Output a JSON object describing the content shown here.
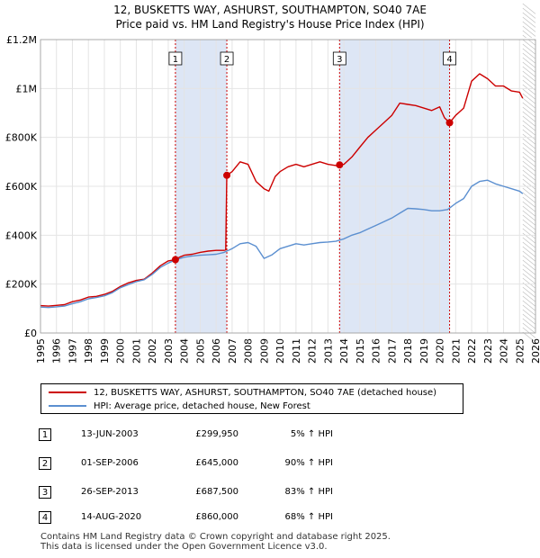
{
  "title_line1": "12, BUSKETTS WAY, ASHURST, SOUTHAMPTON, SO40 7AE",
  "title_line2": "Price paid vs. HM Land Registry's House Price Index (HPI)",
  "colors": {
    "property": "#cc0000",
    "hpi": "#5b8fd0",
    "shade": "#dde6f5",
    "vline": "#cc0000"
  },
  "chart_data": {
    "type": "line",
    "xlim": [
      1995,
      2026
    ],
    "ylim": [
      0,
      1200000
    ],
    "x_ticks": [
      "1995",
      "1996",
      "1997",
      "1998",
      "1999",
      "2000",
      "2001",
      "2002",
      "2003",
      "2004",
      "2005",
      "2006",
      "2007",
      "2008",
      "2009",
      "2010",
      "2011",
      "2012",
      "2013",
      "2014",
      "2015",
      "2016",
      "2017",
      "2018",
      "2019",
      "2020",
      "2021",
      "2022",
      "2023",
      "2024",
      "2025",
      "2026"
    ],
    "y_ticks": [
      {
        "value": 0,
        "label": "£0"
      },
      {
        "value": 200000,
        "label": "£200K"
      },
      {
        "value": 400000,
        "label": "£400K"
      },
      {
        "value": 600000,
        "label": "£600K"
      },
      {
        "value": 800000,
        "label": "£800K"
      },
      {
        "value": 1000000,
        "label": "£1M"
      },
      {
        "value": 1200000,
        "label": "£1.2M"
      }
    ],
    "shaded_ranges": [
      [
        2003.45,
        2006.67
      ],
      [
        2013.73,
        2020.62
      ]
    ],
    "series": [
      {
        "name": "12, BUSKETTS WAY, ASHURST, SOUTHAMPTON, SO40 7AE (detached house)",
        "x": [
          1995,
          1995.5,
          1996,
          1996.5,
          1997,
          1997.5,
          1998,
          1998.5,
          1999,
          1999.5,
          2000,
          2000.5,
          2001,
          2001.5,
          2002,
          2002.5,
          2003,
          2003.45,
          2003.7,
          2004,
          2004.5,
          2005,
          2005.5,
          2006,
          2006.5,
          2006.6,
          2006.67,
          2007,
          2007.5,
          2008,
          2008.5,
          2009,
          2009.3,
          2009.7,
          2010,
          2010.5,
          2011,
          2011.5,
          2012,
          2012.5,
          2013,
          2013.5,
          2013.73,
          2014,
          2014.5,
          2015,
          2015.5,
          2016,
          2016.5,
          2017,
          2017.5,
          2018,
          2018.5,
          2019,
          2019.5,
          2020,
          2020.3,
          2020.62,
          2021,
          2021.5,
          2022,
          2022.5,
          2023,
          2023.5,
          2024,
          2024.5,
          2025,
          2025.2
        ],
        "values": [
          112000,
          110000,
          113000,
          116000,
          128000,
          135000,
          147000,
          150000,
          158000,
          170000,
          190000,
          205000,
          215000,
          220000,
          245000,
          275000,
          295000,
          299950,
          310000,
          318000,
          322000,
          330000,
          335000,
          338000,
          338000,
          340000,
          645000,
          660000,
          700000,
          690000,
          620000,
          590000,
          580000,
          640000,
          660000,
          680000,
          690000,
          680000,
          690000,
          700000,
          690000,
          685000,
          687500,
          690000,
          720000,
          760000,
          800000,
          830000,
          860000,
          890000,
          940000,
          935000,
          930000,
          920000,
          910000,
          925000,
          880000,
          860000,
          890000,
          920000,
          1030000,
          1060000,
          1040000,
          1010000,
          1010000,
          990000,
          985000,
          960000
        ]
      },
      {
        "name": "HPI: Average price, detached house, New Forest",
        "x": [
          1995,
          1995.5,
          1996,
          1996.5,
          1997,
          1997.5,
          1998,
          1998.5,
          1999,
          1999.5,
          2000,
          2000.5,
          2001,
          2001.5,
          2002,
          2002.5,
          2003,
          2003.5,
          2004,
          2004.5,
          2005,
          2005.5,
          2006,
          2006.5,
          2007,
          2007.5,
          2008,
          2008.5,
          2009,
          2009.5,
          2010,
          2010.5,
          2011,
          2011.5,
          2012,
          2012.5,
          2013,
          2013.5,
          2014,
          2014.5,
          2015,
          2015.5,
          2016,
          2016.5,
          2017,
          2017.5,
          2018,
          2018.5,
          2019,
          2019.5,
          2020,
          2020.5,
          2021,
          2021.5,
          2022,
          2022.5,
          2023,
          2023.5,
          2024,
          2024.5,
          2025,
          2025.2
        ],
        "values": [
          106000,
          104000,
          107000,
          110000,
          120000,
          128000,
          140000,
          145000,
          152000,
          165000,
          185000,
          198000,
          210000,
          218000,
          240000,
          268000,
          286000,
          300000,
          310000,
          315000,
          318000,
          320000,
          322000,
          330000,
          345000,
          365000,
          370000,
          355000,
          305000,
          320000,
          345000,
          355000,
          365000,
          360000,
          365000,
          370000,
          372000,
          375000,
          385000,
          400000,
          410000,
          425000,
          440000,
          455000,
          470000,
          490000,
          510000,
          508000,
          505000,
          500000,
          500000,
          505000,
          530000,
          550000,
          600000,
          620000,
          625000,
          610000,
          600000,
          590000,
          580000,
          570000
        ]
      }
    ],
    "sales": [
      {
        "label": "1",
        "x": 2003.45,
        "y": 299950
      },
      {
        "label": "2",
        "x": 2006.67,
        "y": 645000
      },
      {
        "label": "3",
        "x": 2013.73,
        "y": 687500
      },
      {
        "label": "4",
        "x": 2020.62,
        "y": 860000
      }
    ]
  },
  "legend": {
    "property_label": "12, BUSKETTS WAY, ASHURST, SOUTHAMPTON, SO40 7AE (detached house)",
    "hpi_label": "HPI: Average price, detached house, New Forest"
  },
  "transactions": [
    {
      "num": "1",
      "date": "13-JUN-2003",
      "price": "£299,950",
      "hpi": "5% ↑ HPI"
    },
    {
      "num": "2",
      "date": "01-SEP-2006",
      "price": "£645,000",
      "hpi": "90% ↑ HPI"
    },
    {
      "num": "3",
      "date": "26-SEP-2013",
      "price": "£687,500",
      "hpi": "83% ↑ HPI"
    },
    {
      "num": "4",
      "date": "14-AUG-2020",
      "price": "£860,000",
      "hpi": "68% ↑ HPI"
    }
  ],
  "footer_line1": "Contains HM Land Registry data © Crown copyright and database right 2025.",
  "footer_line2": "This data is licensed under the Open Government Licence v3.0."
}
